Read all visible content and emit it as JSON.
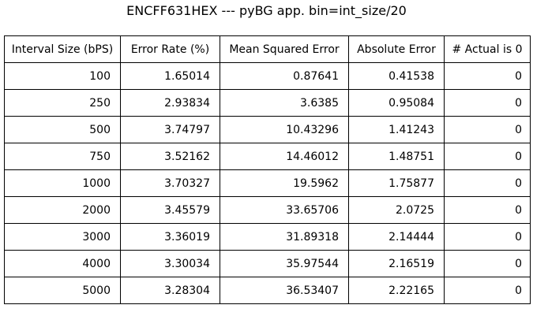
{
  "chart_data": {
    "type": "table",
    "title": "ENCFF631HEX --- pyBG app. bin=int_size/20",
    "columns": [
      "Interval Size (bPS)",
      "Error Rate (%)",
      "Mean Squared Error",
      "Absolute Error",
      "# Actual is 0"
    ],
    "rows": [
      [
        "100",
        "1.65014",
        "0.87641",
        "0.41538",
        "0"
      ],
      [
        "250",
        "2.93834",
        "3.6385",
        "0.95084",
        "0"
      ],
      [
        "500",
        "3.74797",
        "10.43296",
        "1.41243",
        "0"
      ],
      [
        "750",
        "3.52162",
        "14.46012",
        "1.48751",
        "0"
      ],
      [
        "1000",
        "3.70327",
        "19.5962",
        "1.75877",
        "0"
      ],
      [
        "2000",
        "3.45579",
        "33.65706",
        "2.0725",
        "0"
      ],
      [
        "3000",
        "3.36019",
        "31.89318",
        "2.14444",
        "0"
      ],
      [
        "4000",
        "3.30034",
        "35.97544",
        "2.16519",
        "0"
      ],
      [
        "5000",
        "3.28304",
        "36.53407",
        "2.22165",
        "0"
      ]
    ]
  }
}
